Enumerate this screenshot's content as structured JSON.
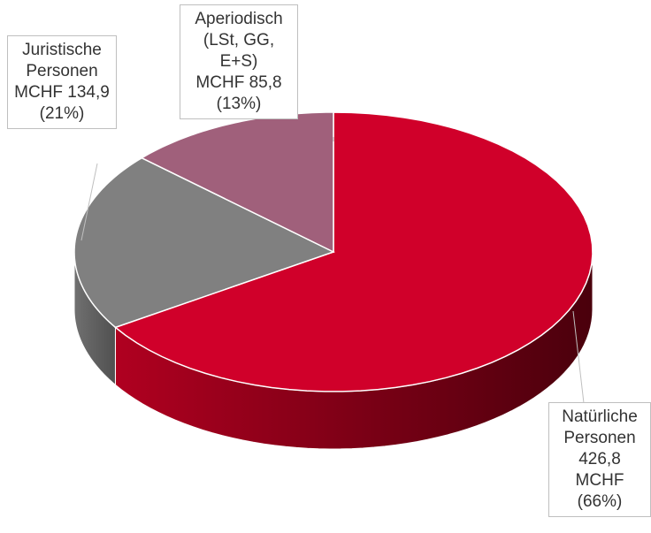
{
  "chart_data": {
    "type": "pie3d",
    "categories": [
      "Natürliche Personen",
      "Juristische Personen",
      "Aperiodisch (LSt, GG, E+S)"
    ],
    "values": [
      426.8,
      134.9,
      85.8
    ],
    "value_labels": [
      "426,8 MCHF",
      "MCHF 134,9",
      "MCHF 85,8"
    ],
    "percentages": [
      66,
      21,
      13
    ],
    "percentage_labels": [
      "(66%)",
      "(21%)",
      "(13%)"
    ],
    "colors": [
      "#d0002a",
      "#808080",
      "#a0607b"
    ]
  }
}
